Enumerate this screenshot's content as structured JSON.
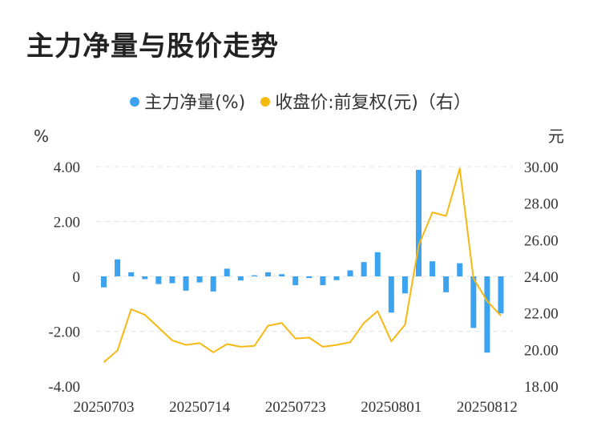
{
  "title": "主力净量与股价走势",
  "legend": [
    {
      "label": "主力净量(%)",
      "color": "#3ba3f0"
    },
    {
      "label": "收盘价:前复权(元)（右）",
      "color": "#f5b912"
    }
  ],
  "chart_data": {
    "type": "bar+line",
    "left_unit": "%",
    "right_unit": "元",
    "y_left": {
      "min": -4,
      "max": 4,
      "ticks": [
        4,
        2,
        0,
        -2,
        -4
      ],
      "tick_labels": [
        "4.00",
        "2.00",
        "0",
        "-2.00",
        "-4.00"
      ]
    },
    "y_right": {
      "min": 18,
      "max": 30,
      "ticks": [
        30,
        28,
        26,
        24,
        22,
        20,
        18
      ],
      "tick_labels": [
        "30.00",
        "28.00",
        "26.00",
        "24.00",
        "22.00",
        "20.00",
        "18.00"
      ]
    },
    "x_tick_labels": [
      {
        "index": 0,
        "label": "20250703"
      },
      {
        "index": 7,
        "label": "20250714"
      },
      {
        "index": 14,
        "label": "20250723"
      },
      {
        "index": 21,
        "label": "20250801"
      },
      {
        "index": 28,
        "label": "20250812"
      }
    ],
    "grid": true,
    "series": [
      {
        "name": "主力净量(%)",
        "kind": "bar",
        "axis": "left",
        "color": "#3ba3f0",
        "values": [
          -0.4,
          0.62,
          0.15,
          -0.1,
          -0.28,
          -0.25,
          -0.52,
          -0.22,
          -0.55,
          0.28,
          -0.15,
          0.04,
          0.15,
          0.08,
          -0.32,
          -0.06,
          -0.32,
          -0.14,
          0.22,
          0.52,
          0.88,
          -1.32,
          -0.62,
          3.88,
          0.55,
          -0.58,
          0.48,
          -1.88,
          -2.78,
          -1.35
        ]
      },
      {
        "name": "收盘价:前复权(元)（右）",
        "kind": "line",
        "axis": "right",
        "color": "#f5b912",
        "values": [
          19.3,
          19.95,
          22.2,
          21.9,
          21.2,
          20.5,
          20.25,
          20.35,
          19.85,
          20.3,
          20.15,
          20.2,
          21.3,
          21.45,
          20.6,
          20.65,
          20.15,
          20.25,
          20.4,
          21.45,
          22.1,
          20.45,
          21.35,
          25.7,
          27.5,
          27.3,
          29.9,
          23.9,
          22.65,
          21.85
        ]
      }
    ]
  }
}
